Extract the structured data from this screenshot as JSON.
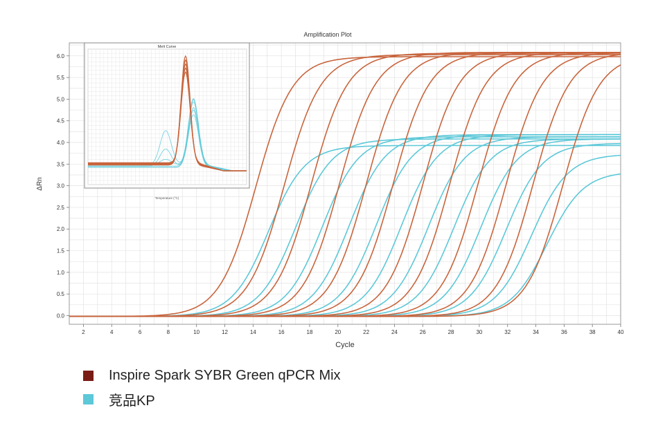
{
  "chart_data": {
    "type": "line",
    "title": "Amplification Plot",
    "xlabel": "Cycle",
    "ylabel": "ΔRn",
    "xlim": [
      1,
      40
    ],
    "ylim": [
      -0.2,
      6.3
    ],
    "x_ticks": [
      2,
      4,
      6,
      8,
      10,
      12,
      14,
      16,
      18,
      20,
      22,
      24,
      26,
      28,
      30,
      32,
      34,
      36,
      38,
      40
    ],
    "y_ticks": [
      "0.0",
      "0.5",
      "1.0",
      "1.5",
      "2.0",
      "2.5",
      "3.0",
      "3.5",
      "4.0",
      "4.5",
      "5.0",
      "5.5",
      "6.0"
    ],
    "grid": true,
    "series": [
      {
        "name": "Inspire Spark SYBR Green qPCR Mix",
        "color": "#c8643c",
        "curves": [
          {
            "plateau": 6.0,
            "midpoint": 14.2
          },
          {
            "plateau": 6.05,
            "midpoint": 16.2
          },
          {
            "plateau": 6.08,
            "midpoint": 18.1
          },
          {
            "plateau": 6.1,
            "midpoint": 20.1
          },
          {
            "plateau": 6.1,
            "midpoint": 22.0
          },
          {
            "plateau": 6.1,
            "midpoint": 23.9
          },
          {
            "plateau": 6.1,
            "midpoint": 26.0
          },
          {
            "plateau": 6.1,
            "midpoint": 27.9
          },
          {
            "plateau": 6.1,
            "midpoint": 29.9
          },
          {
            "plateau": 6.1,
            "midpoint": 31.9
          },
          {
            "plateau": 6.1,
            "midpoint": 33.8
          },
          {
            "plateau": 6.05,
            "midpoint": 35.9
          }
        ]
      },
      {
        "name": "竞品KP",
        "color": "#5cc8d8",
        "curves": [
          {
            "plateau": 3.95,
            "midpoint": 15.1
          },
          {
            "plateau": 4.1,
            "midpoint": 17.0
          },
          {
            "plateau": 4.15,
            "midpoint": 18.9
          },
          {
            "plateau": 4.2,
            "midpoint": 20.8
          },
          {
            "plateau": 4.2,
            "midpoint": 22.7
          },
          {
            "plateau": 4.2,
            "midpoint": 24.5
          },
          {
            "plateau": 4.15,
            "midpoint": 26.4
          },
          {
            "plateau": 4.1,
            "midpoint": 28.2
          },
          {
            "plateau": 4.1,
            "midpoint": 30.1
          },
          {
            "plateau": 4.0,
            "midpoint": 31.9
          },
          {
            "plateau": 3.75,
            "midpoint": 33.7
          },
          {
            "plateau": 3.35,
            "midpoint": 34.8
          }
        ]
      }
    ],
    "inset": {
      "title": "Melt Curve",
      "xlabel": "Temperature (°C)",
      "series": [
        {
          "name": "Inspire Spark SYBR Green qPCR Mix",
          "color": "#c8643c",
          "peak_height": 0.95
        },
        {
          "name": "竞品KP",
          "color": "#5cc8d8",
          "peak_height": 0.6
        }
      ]
    }
  },
  "legend": {
    "items": [
      {
        "label": "Inspire Spark SYBR Green qPCR Mix",
        "color": "#7a1c16"
      },
      {
        "label": "竞品KP",
        "color": "#5cc8d8"
      }
    ]
  }
}
